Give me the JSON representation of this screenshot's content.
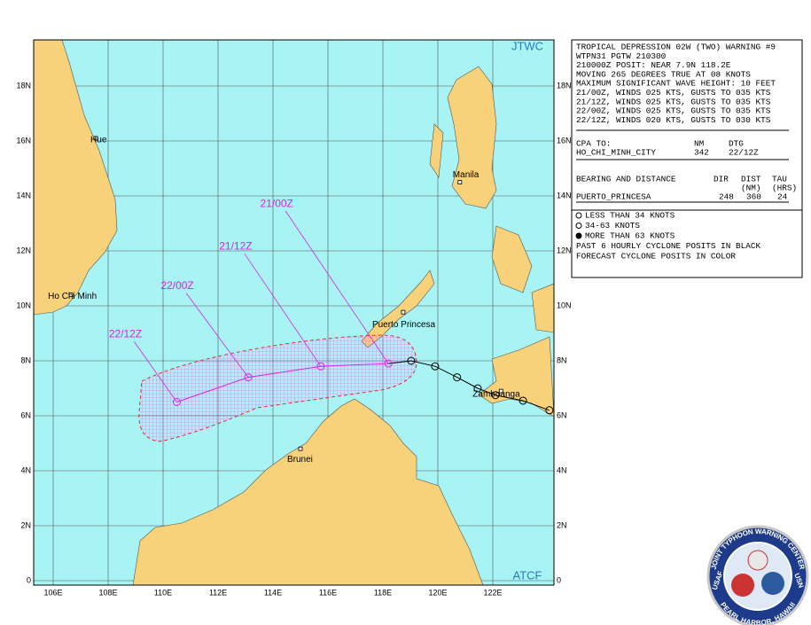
{
  "map": {
    "agency": "JTWC",
    "footer": "ATCF",
    "lat_ticks": [
      {
        "value": 18,
        "label": "18N"
      },
      {
        "value": 16,
        "label": "16N"
      },
      {
        "value": 14,
        "label": "14N"
      },
      {
        "value": 12,
        "label": "12N"
      },
      {
        "value": 10,
        "label": "10N"
      },
      {
        "value": 8,
        "label": "8N"
      },
      {
        "value": 6,
        "label": "6N"
      },
      {
        "value": 4,
        "label": "4N"
      },
      {
        "value": 2,
        "label": "2N"
      },
      0
    ],
    "lon_ticks": [
      {
        "value": 106,
        "label": "106E"
      },
      {
        "value": 108,
        "label": "108E"
      },
      {
        "value": 110,
        "label": "110E"
      },
      {
        "value": 112,
        "label": "112E"
      },
      {
        "value": 114,
        "label": "114E"
      },
      {
        "value": 116,
        "label": "116E"
      },
      {
        "value": 118,
        "label": "118E"
      },
      {
        "value": 120,
        "label": "120E"
      },
      {
        "value": 122,
        "label": "122E"
      }
    ]
  },
  "cities": [
    {
      "name": "Hue",
      "lat": 16.1,
      "lon": 107.55
    },
    {
      "name": "Ho Chi Minh",
      "lat": 10.4,
      "lon": 106.65
    },
    {
      "name": "Manila",
      "lat": 14.5,
      "lon": 120.8
    },
    {
      "name": "Puerto Princesa",
      "lat": 9.77,
      "lon": 118.74
    },
    {
      "name": "Zamboanga",
      "lat": 6.9,
      "lon": 122.3
    },
    {
      "name": "Brunei",
      "lat": 4.8,
      "lon": 115.0
    }
  ],
  "forecast": [
    {
      "label": "21/00Z",
      "lat": 7.9,
      "lon": 118.2
    },
    {
      "label": "21/12Z",
      "lat": 7.8,
      "lon": 115.74
    },
    {
      "label": "22/00Z",
      "lat": 7.4,
      "lon": 113.1
    },
    {
      "label": "22/12Z",
      "lat": 6.5,
      "lon": 110.5
    }
  ],
  "past_track": [
    {
      "lat": 8.0,
      "lon": 119.03
    },
    {
      "lat": 7.8,
      "lon": 119.9
    },
    {
      "lat": 7.4,
      "lon": 120.7
    },
    {
      "lat": 7.0,
      "lon": 121.45
    },
    {
      "lat": 6.75,
      "lon": 122.1
    },
    {
      "lat": 6.55,
      "lon": 123.1
    },
    {
      "lat": 6.2,
      "lon": 124.06
    }
  ],
  "warning": {
    "lines": [
      "TROPICAL DEPRESSION 02W (TWO) WARNING #9",
      "WTPN31 PGTW 210300",
      "210000Z POSIT: NEAR 7.9N 118.2E",
      "MOVING 265 DEGREES TRUE AT 08 KNOTS",
      "MAXIMUM SIGNIFICANT WAVE HEIGHT: 10 FEET",
      "21/00Z, WINDS 025 KTS, GUSTS TO 035 KTS",
      "21/12Z, WINDS 025 KTS, GUSTS TO 035 KTS",
      "22/00Z, WINDS 025 KTS, GUSTS TO 035 KTS",
      "22/12Z, WINDS 020 KTS, GUSTS TO 030 KTS"
    ],
    "cpa": {
      "header": [
        "CPA TO:",
        "NM",
        "DTG"
      ],
      "row": [
        "HO_CHI_MINH_CITY",
        "342",
        "22/12Z"
      ]
    },
    "bearing": {
      "header": [
        "BEARING AND DISTANCE",
        "DIR",
        "DIST",
        "TAU"
      ],
      "units": [
        "(NM)",
        "(HRS)"
      ],
      "row": [
        "PUERTO_PRINCESA",
        "248",
        "360",
        "24"
      ]
    }
  },
  "legend": [
    "LESS THAN 34 KNOTS",
    "34-63 KNOTS",
    "MORE THAN 63 KNOTS",
    "PAST 6 HOURLY CYCLONE POSITS IN BLACK",
    "FORECAST CYCLONE POSITS IN COLOR"
  ],
  "emblem": {
    "top": "JOINT TYPHOON WARNING CENTER",
    "bottom": "PEARL HARBOR, HAWAII",
    "left": "USAF",
    "right": "USN"
  }
}
